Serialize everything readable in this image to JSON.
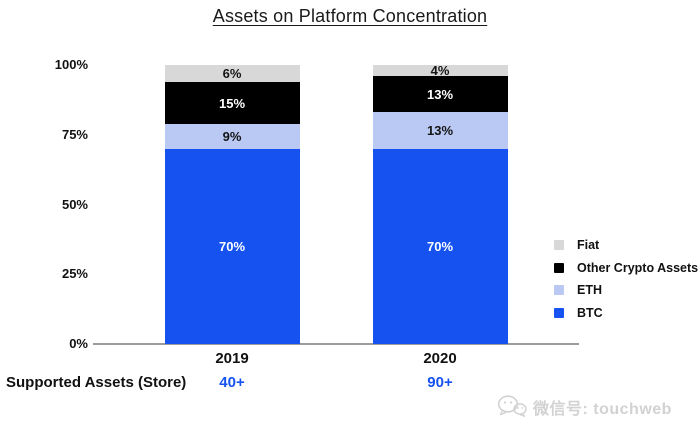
{
  "chart_data": {
    "type": "bar",
    "stacked": true,
    "title": "Assets on Platform Concentration",
    "categories": [
      "2019",
      "2020"
    ],
    "series": [
      {
        "name": "BTC",
        "color": "#1652f0",
        "label_color": "#ffffff",
        "values": [
          70,
          70
        ]
      },
      {
        "name": "ETH",
        "color": "#b9c9f3",
        "label_color": "#141414",
        "values": [
          9,
          13
        ]
      },
      {
        "name": "Other Crypto Assets",
        "color": "#000000",
        "label_color": "#ffffff",
        "values": [
          15,
          13
        ]
      },
      {
        "name": "Fiat",
        "color": "#d8d8d8",
        "label_color": "#141414",
        "values": [
          6,
          4
        ]
      }
    ],
    "value_suffix": "%",
    "ylim": [
      0,
      100
    ],
    "yticks": [
      {
        "label": "100%",
        "value": 100
      },
      {
        "label": "75%",
        "value": 75
      },
      {
        "label": "50%",
        "value": 50
      },
      {
        "label": "25%",
        "value": 25
      },
      {
        "label": "0%",
        "value": 0
      }
    ],
    "legend_position": "right",
    "legend_order": [
      "Fiat",
      "Other Crypto Assets",
      "ETH",
      "BTC"
    ],
    "grid": false
  },
  "footer": {
    "label": "Supported Assets (Store)",
    "values": [
      "40+",
      "90+"
    ],
    "value_color": "#1652f0"
  },
  "watermark": {
    "icon": "wechat-icon",
    "text": "微信号: touchweb"
  }
}
